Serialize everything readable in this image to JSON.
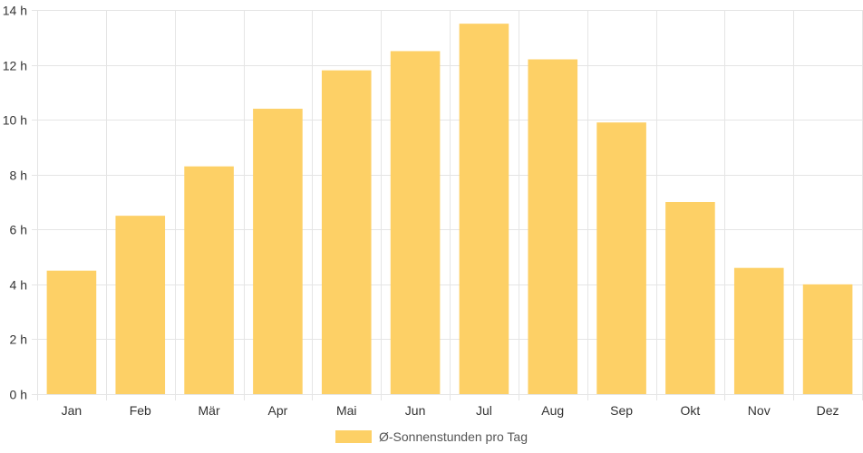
{
  "chart_data": {
    "type": "bar",
    "categories": [
      "Jan",
      "Feb",
      "Mär",
      "Apr",
      "Mai",
      "Jun",
      "Jul",
      "Aug",
      "Sep",
      "Okt",
      "Nov",
      "Dez"
    ],
    "series": [
      {
        "name": "Ø-Sonnenstunden pro Tag",
        "values": [
          4.5,
          6.5,
          8.3,
          10.4,
          11.8,
          12.5,
          13.5,
          12.2,
          9.9,
          7.0,
          4.6,
          4.0
        ]
      }
    ],
    "ylim": [
      0,
      14
    ],
    "yticks": [
      0,
      2,
      4,
      6,
      8,
      10,
      12,
      14
    ],
    "ytick_suffix": " h",
    "grid": true,
    "legend_position": "bottom",
    "colors": {
      "bar": "#fdd066",
      "grid": "#e5e5e5",
      "text": "#333333"
    }
  },
  "legend": {
    "label": "Ø-Sonnenstunden pro Tag"
  }
}
